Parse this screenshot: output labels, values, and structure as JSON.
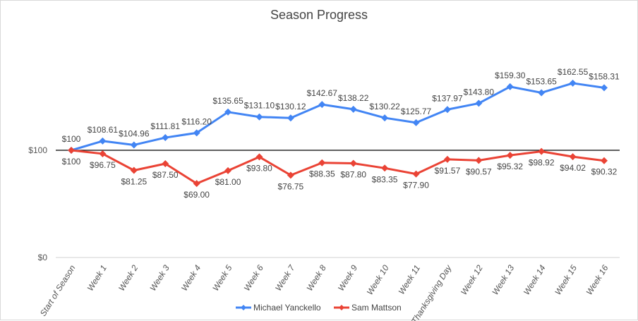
{
  "chart_data": {
    "type": "line",
    "title": "Season Progress",
    "xlabel": "",
    "ylabel": "",
    "ylim": [
      0,
      200
    ],
    "y_ticks": [
      "$0",
      "$100"
    ],
    "y_tick_values": [
      0,
      100
    ],
    "baseline_value": 100,
    "legend_position": "bottom",
    "categories": [
      "Start of Season",
      "Week 1",
      "Week 2",
      "Week 3",
      "Week 4",
      "Week 5",
      "Week 6",
      "Week 7",
      "Week 8",
      "Week 9",
      "Week 10",
      "Week 11",
      "Thanksgiving Day",
      "Week 12",
      "Week 13",
      "Week 14",
      "Week 15",
      "Week 16"
    ],
    "series": [
      {
        "name": "Michael Yanckello",
        "color": "#4285f4",
        "values": [
          100,
          108.61,
          104.96,
          111.81,
          116.2,
          135.65,
          131.1,
          130.12,
          142.67,
          138.22,
          130.22,
          125.77,
          137.97,
          143.8,
          159.3,
          153.65,
          162.55,
          158.31
        ],
        "labels": [
          "$100",
          "$108.61",
          "$104.96",
          "$111.81",
          "$116.20",
          "$135.65",
          "$131.10",
          "$130.12",
          "$142.67",
          "$138.22",
          "$130.22",
          "$125.77",
          "$137.97",
          "$143.80",
          "$159.30",
          "$153.65",
          "$162.55",
          "$158.31"
        ]
      },
      {
        "name": "Sam Mattson",
        "color": "#ea4335",
        "values": [
          100,
          96.75,
          81.25,
          87.5,
          69.0,
          81.0,
          93.8,
          76.75,
          88.35,
          87.8,
          83.35,
          77.9,
          91.57,
          90.57,
          95.32,
          98.92,
          94.02,
          90.32
        ],
        "labels": [
          "$100",
          "$96.75",
          "$81.25",
          "$87.50",
          "$69.00",
          "$81.00",
          "$93.80",
          "$76.75",
          "$88.35",
          "$87.80",
          "$83.35",
          "$77.90",
          "$91.57",
          "$90.57",
          "$95.32",
          "$98.92",
          "$94.02",
          "$90.32"
        ]
      }
    ]
  }
}
